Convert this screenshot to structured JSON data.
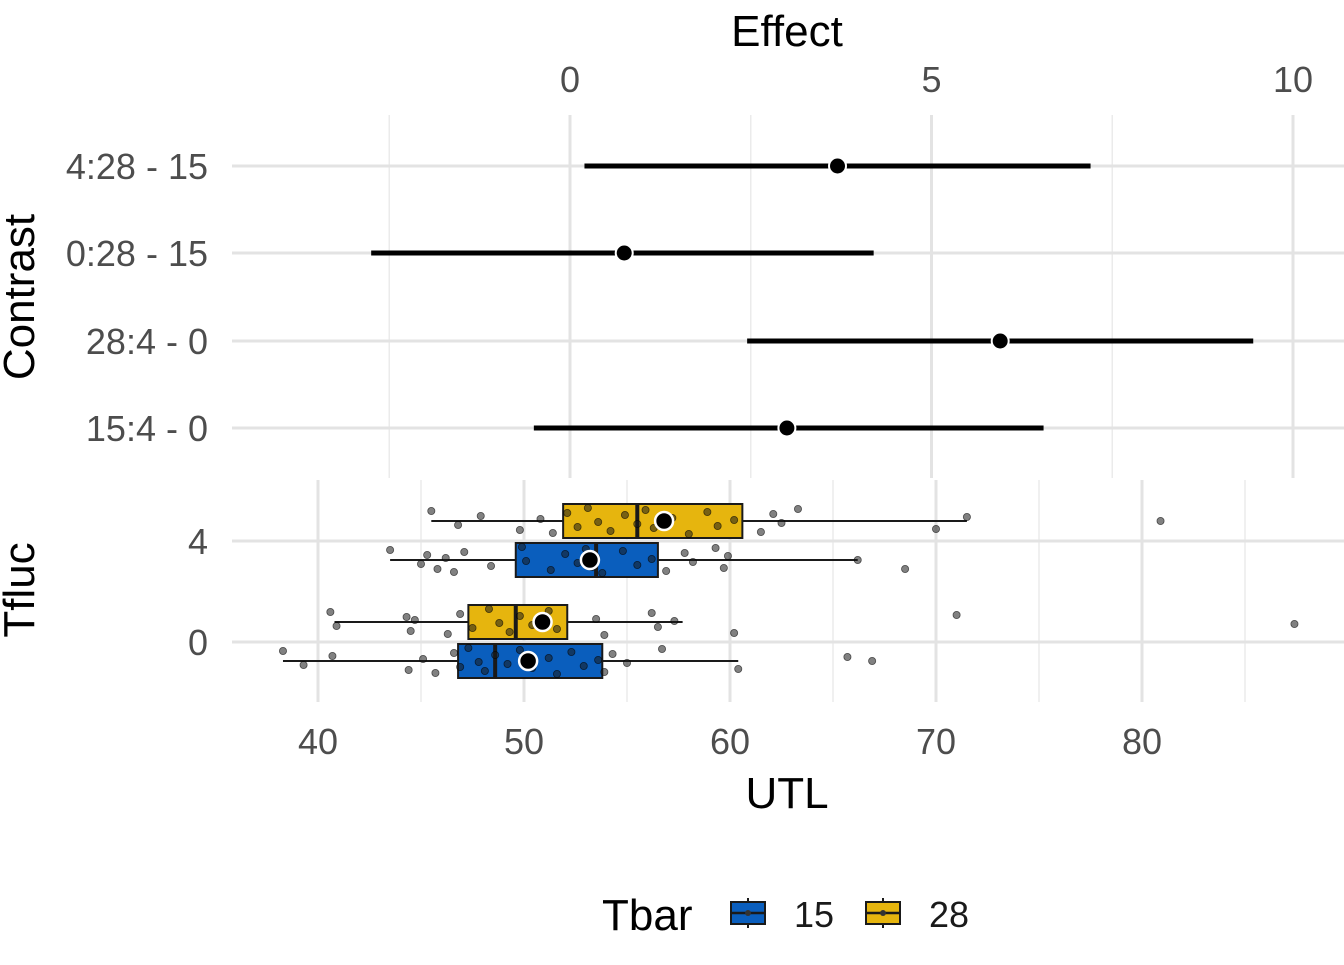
{
  "chart_data": [
    {
      "type": "interval",
      "title": "",
      "xlabel": "Effect",
      "ylabel": "Contrast",
      "x_ticks": [
        0,
        5,
        10
      ],
      "xlim": [
        -2.5,
        10.5
      ],
      "grid": true,
      "categories": [
        "4:28 - 15",
        "0:28 - 15",
        "28:4 - 0",
        "15:4 - 0"
      ],
      "estimates": [
        {
          "contrast": "4:28 - 15",
          "estimate": 3.7,
          "lower": 0.2,
          "upper": 7.2
        },
        {
          "contrast": "0:28 - 15",
          "estimate": 0.75,
          "lower": -2.75,
          "upper": 4.2
        },
        {
          "contrast": "28:4 - 0",
          "estimate": 5.95,
          "lower": 2.45,
          "upper": 9.45
        },
        {
          "contrast": "15:4 - 0",
          "estimate": 3.0,
          "lower": -0.5,
          "upper": 6.55
        }
      ]
    },
    {
      "type": "boxplot",
      "title": "",
      "xlabel": "UTL",
      "ylabel": "Tfluc",
      "x_ticks": [
        40,
        50,
        60,
        70,
        80
      ],
      "xlim": [
        37,
        88
      ],
      "grid": true,
      "categories": [
        "4",
        "0"
      ],
      "legend": {
        "title": "Tbar",
        "position": "bottom",
        "entries": [
          "15",
          "28"
        ]
      },
      "series": [
        {
          "name": "15",
          "tfluc": "4",
          "color": "#0a5ebd",
          "box": {
            "min": 43.5,
            "q1": 49.6,
            "median": 53.5,
            "q3": 56.5,
            "max": 66.2
          },
          "mean": 53.2,
          "points": [
            43.5,
            45.0,
            45.3,
            45.8,
            46.2,
            46.6,
            47.1,
            48.4,
            49.9,
            50.1,
            51.3,
            52.0,
            52.6,
            53.0,
            53.3,
            53.5,
            53.8,
            54.8,
            55.5,
            56.2,
            56.9,
            57.8,
            58.2,
            59.3,
            59.7,
            59.9,
            66.2,
            68.5
          ]
        },
        {
          "name": "28",
          "tfluc": "4",
          "color": "#e6b50e",
          "box": {
            "min": 45.5,
            "q1": 51.9,
            "median": 55.5,
            "q3": 60.6,
            "max": 71.5
          },
          "mean": 56.8,
          "points": [
            45.5,
            46.8,
            47.9,
            49.8,
            50.8,
            51.4,
            52.1,
            52.6,
            53.1,
            53.6,
            54.2,
            54.9,
            55.5,
            55.9,
            56.3,
            57.2,
            58.0,
            58.9,
            59.4,
            60.2,
            61.5,
            62.1,
            62.5,
            63.3,
            70.0,
            71.5,
            80.9
          ]
        },
        {
          "name": "15",
          "tfluc": "0",
          "color": "#0a5ebd",
          "box": {
            "min": 38.3,
            "q1": 46.8,
            "median": 48.6,
            "q3": 53.8,
            "max": 60.4
          },
          "mean": 50.2,
          "points": [
            38.3,
            39.3,
            40.7,
            44.4,
            45.1,
            45.7,
            46.6,
            46.9,
            47.3,
            47.8,
            48.1,
            48.6,
            49.2,
            49.8,
            50.4,
            51.2,
            51.6,
            52.3,
            52.9,
            53.6,
            53.9,
            54.3,
            55.0,
            56.7,
            60.4,
            65.7,
            66.9
          ]
        },
        {
          "name": "28",
          "tfluc": "0",
          "color": "#e6b50e",
          "box": {
            "min": 40.8,
            "q1": 47.3,
            "median": 49.6,
            "q3": 52.1,
            "max": 57.7
          },
          "mean": 50.9,
          "points": [
            40.6,
            40.9,
            44.3,
            44.5,
            44.7,
            46.3,
            46.9,
            47.5,
            48.3,
            48.8,
            49.3,
            49.8,
            50.4,
            51.2,
            51.6,
            53.5,
            53.9,
            56.2,
            56.5,
            57.3,
            60.2,
            71.0,
            87.4
          ]
        }
      ]
    }
  ]
}
